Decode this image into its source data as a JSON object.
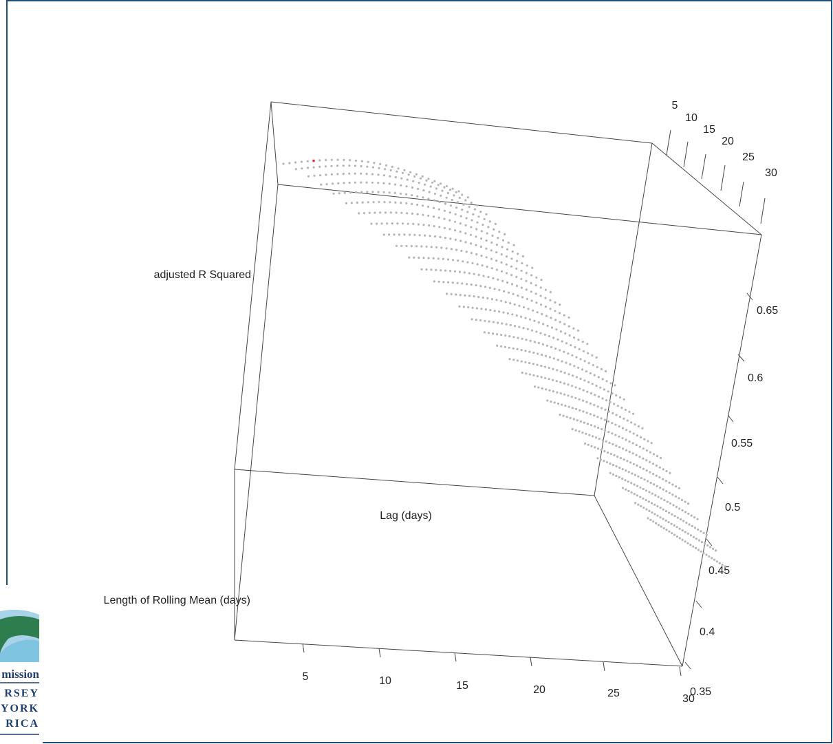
{
  "logo": {
    "lines": [
      "mission",
      "RSEY",
      "YORK",
      "RICA"
    ]
  },
  "chart_data": {
    "type": "scatter3d",
    "title": "",
    "axes": {
      "x": {
        "label": "Lag (days)",
        "ticks": [
          5,
          10,
          15,
          20,
          25,
          30
        ],
        "range": [
          1,
          30
        ]
      },
      "y": {
        "label": "Length of Rolling Mean (days)",
        "ticks": [
          5,
          10,
          15,
          20,
          25,
          30
        ],
        "range": [
          1,
          30
        ]
      },
      "z": {
        "label": "adjusted R Squared",
        "ticks": [
          0.35,
          0.4,
          0.45,
          0.5,
          0.55,
          0.6,
          0.65
        ],
        "range": [
          0.35,
          0.7
        ]
      }
    },
    "point_color": "#b5b5b5",
    "highlight_color": "#e03030",
    "surface_description": "adjusted R squared evaluated on a grid of lag 1-30 days and rolling mean length 1-30 days; values peak near 0.7 at short lag and decline toward 0.35 at lag 30",
    "grid_size": 30,
    "z_max": 0.7,
    "z_min_at_max_lag": 0.36,
    "peak_marker": {
      "lag": 1,
      "length": 6
    }
  }
}
